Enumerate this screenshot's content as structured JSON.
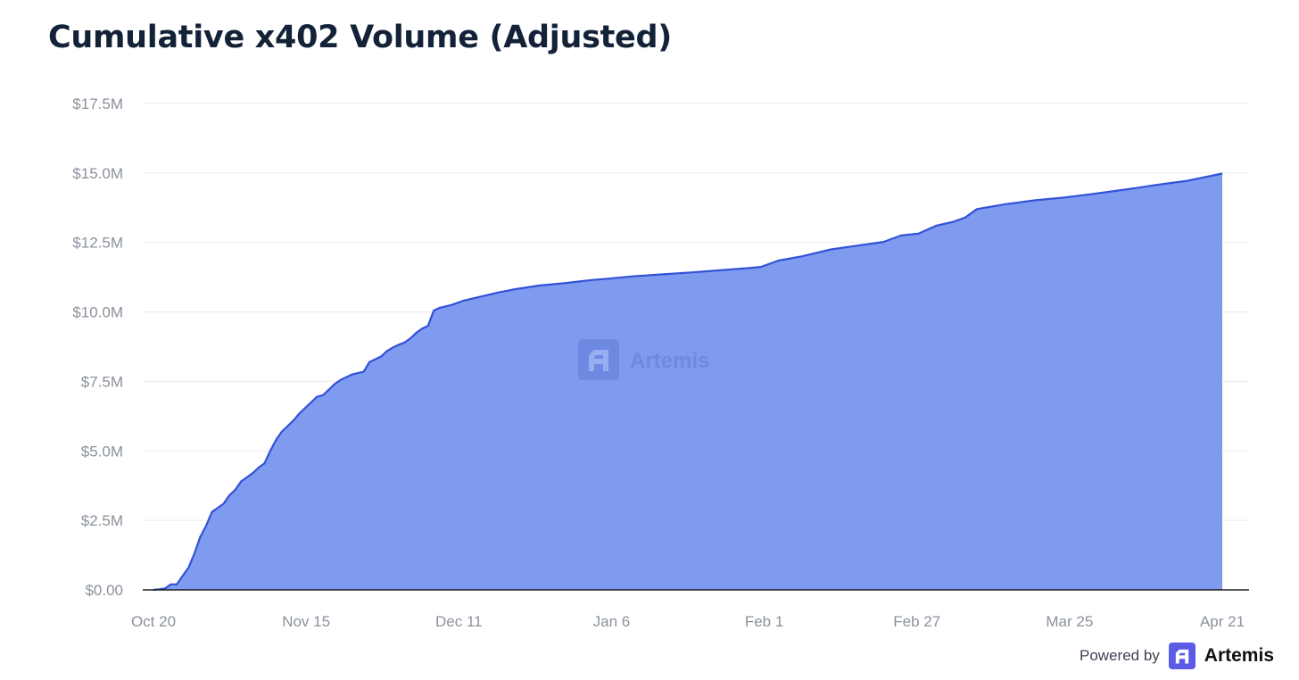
{
  "title": "Cumulative x402 Volume (Adjusted)",
  "watermark": {
    "text": "Artemis",
    "icon": "artemis-logo-icon"
  },
  "footer": {
    "powered_by": "Powered by",
    "brand": "Artemis",
    "icon": "artemis-logo-icon",
    "brand_color": "#5b5ce6"
  },
  "colors": {
    "area_fill": "#7f9bef",
    "line": "#3252d8",
    "grid": "#e8eaee",
    "axis": "#1a1a1a"
  },
  "chart_data": {
    "type": "area",
    "title": "Cumulative x402 Volume (Adjusted)",
    "xlabel": "",
    "ylabel": "",
    "x_ticks": [
      "Oct 20",
      "Nov 15",
      "Dec 11",
      "Jan 6",
      "Feb 1",
      "Feb 27",
      "Mar 25",
      "Apr 21"
    ],
    "x_range": [
      "2025-10-20",
      "2026-04-21"
    ],
    "y_ticks": [
      "$0.00",
      "$2.5M",
      "$5.0M",
      "$7.5M",
      "$10.0M",
      "$12.5M",
      "$15.0M",
      "$17.5M"
    ],
    "ylim": [
      0,
      17.5
    ],
    "y_unit": "$M",
    "grid": true,
    "legend": "none",
    "series": [
      {
        "values": [
          [
            "2025-10-20",
            0
          ],
          [
            "2025-10-21",
            0.02
          ],
          [
            "2025-10-22",
            0.05
          ],
          [
            "2025-10-23",
            0.2
          ],
          [
            "2025-10-24",
            0.2
          ],
          [
            "2025-10-25",
            0.5
          ],
          [
            "2025-10-26",
            0.8
          ],
          [
            "2025-10-27",
            1.3
          ],
          [
            "2025-10-28",
            1.9
          ],
          [
            "2025-10-29",
            2.3
          ],
          [
            "2025-10-30",
            2.8
          ],
          [
            "2025-10-31",
            2.95
          ],
          [
            "2025-11-01",
            3.1
          ],
          [
            "2025-11-02",
            3.4
          ],
          [
            "2025-11-03",
            3.6
          ],
          [
            "2025-11-04",
            3.9
          ],
          [
            "2025-11-05",
            4.05
          ],
          [
            "2025-11-06",
            4.2
          ],
          [
            "2025-11-07",
            4.4
          ],
          [
            "2025-11-08",
            4.55
          ],
          [
            "2025-11-09",
            5.0
          ],
          [
            "2025-11-10",
            5.4
          ],
          [
            "2025-11-11",
            5.7
          ],
          [
            "2025-11-12",
            5.9
          ],
          [
            "2025-11-13",
            6.1
          ],
          [
            "2025-11-14",
            6.35
          ],
          [
            "2025-11-15",
            6.55
          ],
          [
            "2025-11-16",
            6.75
          ],
          [
            "2025-11-17",
            6.95
          ],
          [
            "2025-11-18",
            7.0
          ],
          [
            "2025-11-19",
            7.2
          ],
          [
            "2025-11-20",
            7.4
          ],
          [
            "2025-11-21",
            7.55
          ],
          [
            "2025-11-22",
            7.65
          ],
          [
            "2025-11-23",
            7.75
          ],
          [
            "2025-11-24",
            7.8
          ],
          [
            "2025-11-25",
            7.85
          ],
          [
            "2025-11-26",
            8.2
          ],
          [
            "2025-11-27",
            8.3
          ],
          [
            "2025-11-28",
            8.4
          ],
          [
            "2025-11-29",
            8.6
          ],
          [
            "2025-11-30",
            8.72
          ],
          [
            "2025-12-01",
            8.82
          ],
          [
            "2025-12-02",
            8.9
          ],
          [
            "2025-12-03",
            9.05
          ],
          [
            "2025-12-04",
            9.25
          ],
          [
            "2025-12-05",
            9.4
          ],
          [
            "2025-12-06",
            9.5
          ],
          [
            "2025-12-07",
            10.05
          ],
          [
            "2025-12-08",
            10.15
          ],
          [
            "2025-12-10",
            10.25
          ],
          [
            "2025-12-12",
            10.4
          ],
          [
            "2025-12-15",
            10.55
          ],
          [
            "2025-12-18",
            10.7
          ],
          [
            "2025-12-21",
            10.82
          ],
          [
            "2025-12-25",
            10.95
          ],
          [
            "2025-12-30",
            11.05
          ],
          [
            "2026-01-03",
            11.15
          ],
          [
            "2026-01-06",
            11.2
          ],
          [
            "2026-01-10",
            11.28
          ],
          [
            "2026-01-15",
            11.35
          ],
          [
            "2026-01-20",
            11.42
          ],
          [
            "2026-01-25",
            11.5
          ],
          [
            "2026-01-30",
            11.58
          ],
          [
            "2026-02-01",
            11.62
          ],
          [
            "2026-02-04",
            11.85
          ],
          [
            "2026-02-08",
            12.0
          ],
          [
            "2026-02-13",
            12.25
          ],
          [
            "2026-02-18",
            12.4
          ],
          [
            "2026-02-22",
            12.52
          ],
          [
            "2026-02-25",
            12.75
          ],
          [
            "2026-02-28",
            12.82
          ],
          [
            "2026-03-03",
            13.1
          ],
          [
            "2026-03-06",
            13.25
          ],
          [
            "2026-03-08",
            13.4
          ],
          [
            "2026-03-10",
            13.7
          ],
          [
            "2026-03-15",
            13.88
          ],
          [
            "2026-03-20",
            14.02
          ],
          [
            "2026-03-25",
            14.12
          ],
          [
            "2026-03-30",
            14.25
          ],
          [
            "2026-04-05",
            14.42
          ],
          [
            "2026-04-10",
            14.58
          ],
          [
            "2026-04-15",
            14.72
          ],
          [
            "2026-04-21",
            14.98
          ]
        ]
      }
    ]
  }
}
